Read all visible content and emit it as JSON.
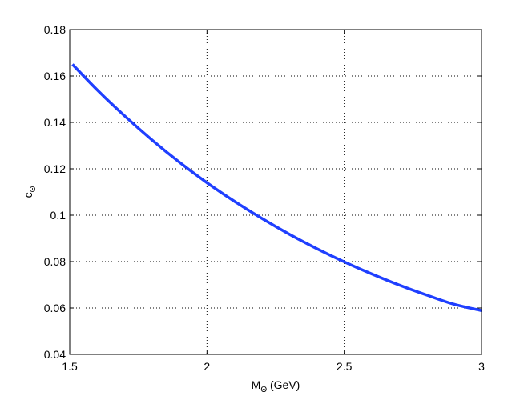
{
  "chart_data": {
    "type": "line",
    "title": "",
    "xlabel": {
      "main": "M",
      "sub": "Θ",
      "suffix": " (GeV)"
    },
    "ylabel": {
      "main": "c",
      "sub": "Θ"
    },
    "xlim": [
      1.5,
      3
    ],
    "ylim": [
      0.04,
      0.18
    ],
    "xticks": [
      1.5,
      2,
      2.5,
      3
    ],
    "xtick_labels": [
      "1.5",
      "2",
      "2.5",
      "3"
    ],
    "yticks": [
      0.04,
      0.06,
      0.08,
      0.1,
      0.12,
      0.14,
      0.16,
      0.18
    ],
    "ytick_labels": [
      "0.04",
      "0.06",
      "0.08",
      "0.1",
      "0.12",
      "0.14",
      "0.16",
      "0.18"
    ],
    "grid": true,
    "legend": "none",
    "series": [
      {
        "color": "#1f3fff",
        "x": [
          1.51,
          1.6,
          1.7,
          1.8,
          1.9,
          2.0,
          2.1,
          2.2,
          2.3,
          2.4,
          2.5,
          2.6,
          2.7,
          2.8,
          2.9,
          3.0
        ],
        "y": [
          0.165,
          0.154,
          0.1428,
          0.1324,
          0.1228,
          0.114,
          0.106,
          0.0986,
          0.0918,
          0.0856,
          0.0799,
          0.0747,
          0.0699,
          0.0656,
          0.0616,
          0.0589
        ]
      }
    ]
  }
}
